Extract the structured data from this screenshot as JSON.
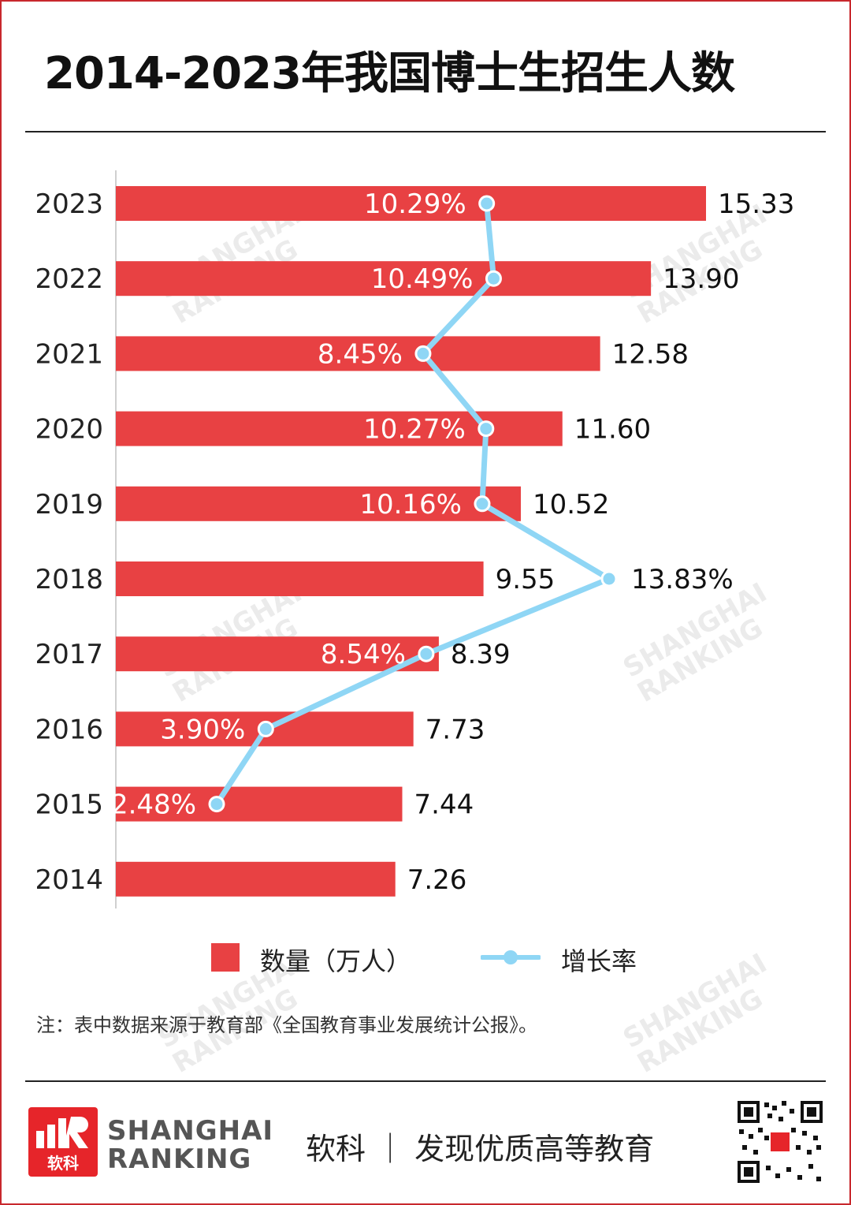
{
  "title": "2014-2023年我国博士生招生人数",
  "chart_data": {
    "type": "bar",
    "orientation": "horizontal",
    "categories": [
      "2023",
      "2022",
      "2021",
      "2020",
      "2019",
      "2018",
      "2017",
      "2016",
      "2015",
      "2014"
    ],
    "series": [
      {
        "name": "数量（万人）",
        "type": "bar",
        "color": "#e84143",
        "values": [
          15.33,
          13.9,
          12.58,
          11.6,
          10.52,
          9.55,
          8.39,
          7.73,
          7.44,
          7.26
        ],
        "labels": [
          "15.33",
          "13.90",
          "12.58",
          "11.60",
          "10.52",
          "9.55",
          "8.39",
          "7.73",
          "7.44",
          "7.26"
        ]
      },
      {
        "name": "增长率",
        "type": "line",
        "color": "#8fd6f5",
        "values": [
          10.29,
          10.49,
          8.45,
          10.27,
          10.16,
          13.83,
          8.54,
          3.9,
          2.48,
          null
        ],
        "labels": [
          "10.29%",
          "10.49%",
          "8.45%",
          "10.27%",
          "10.16%",
          "13.83%",
          "8.54%",
          "3.90%",
          "2.48%",
          ""
        ]
      }
    ],
    "xlim": [
      0,
      16.5
    ],
    "grid": false,
    "legend_position": "bottom"
  },
  "legend": {
    "bar_label": "数量（万人）",
    "line_label": "增长率"
  },
  "note": "注：表中数据来源于教育部《全国教育事业发展统计公报》。",
  "footer": {
    "logo_line1": "SHANGHAI",
    "logo_line2": "RANKING",
    "logo_cn": "软科",
    "slogan": "软科 ｜ 发现优质高等教育"
  },
  "watermark": {
    "line1": "SHANGHAI",
    "line2": "RANKING"
  }
}
